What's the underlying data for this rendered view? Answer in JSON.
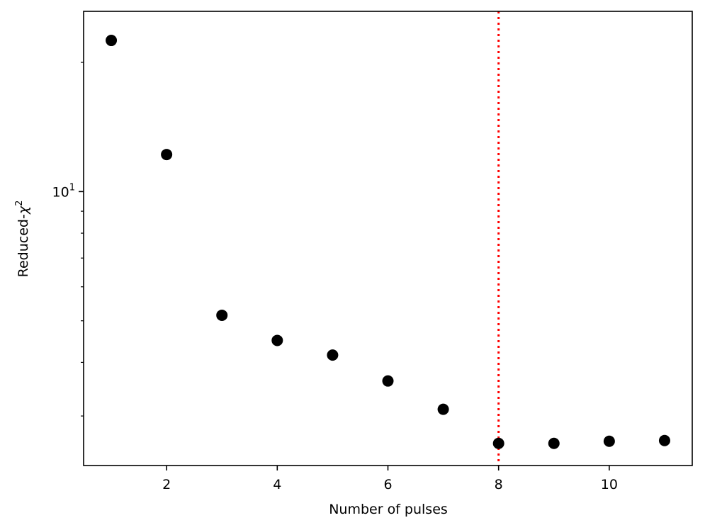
{
  "chart_data": {
    "type": "scatter",
    "title": "",
    "xlabel": "Number of pulses",
    "ylabel": {
      "base": "Reduced-",
      "symbol": "χ",
      "superscript": "2"
    },
    "x_scale": "linear",
    "y_scale": "log",
    "xlim": [
      0.5,
      11.5
    ],
    "ylim": [
      2.3,
      26.3
    ],
    "x_ticks": [
      2,
      4,
      6,
      8,
      10
    ],
    "x_tick_labels": [
      "2",
      "4",
      "6",
      "8",
      "10"
    ],
    "y_major_ticks": [
      10
    ],
    "y_major_tick_labels": [
      {
        "base": "10",
        "exponent": "1"
      }
    ],
    "y_minor_ticks": [
      3,
      4,
      5,
      6,
      7,
      8,
      9,
      20
    ],
    "grid": false,
    "legend": "none",
    "series": [
      {
        "x": [
          1,
          2,
          3,
          4,
          5,
          6,
          7,
          8,
          9,
          10,
          11
        ],
        "y": [
          22.5,
          12.2,
          5.15,
          4.5,
          4.16,
          3.62,
          3.11,
          2.59,
          2.59,
          2.62,
          2.63
        ],
        "color": "#000000",
        "marker": "circle"
      }
    ],
    "reference_lines": [
      {
        "orientation": "vertical",
        "x": 8,
        "color": "#ff0000",
        "style": "dotted"
      }
    ]
  }
}
